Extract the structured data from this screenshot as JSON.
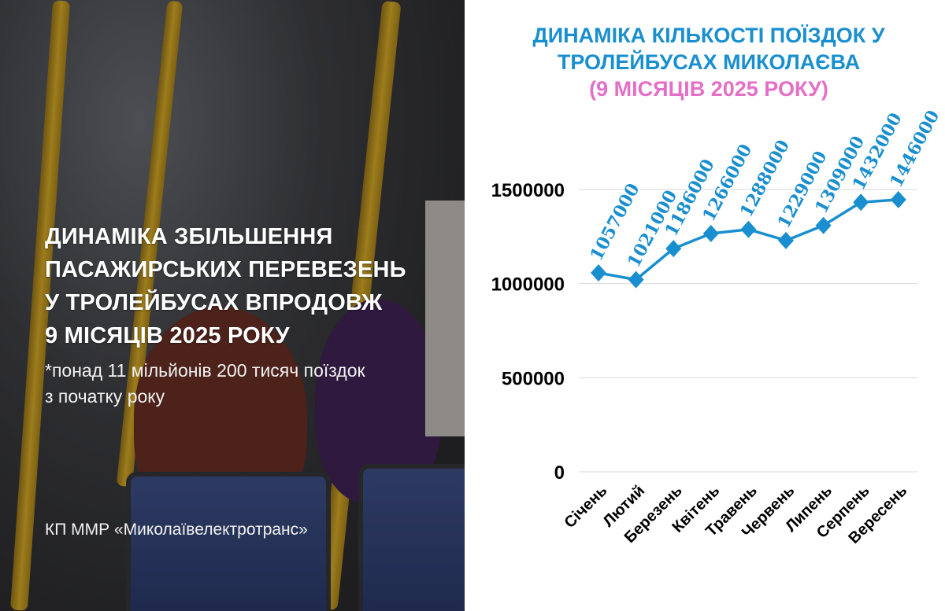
{
  "left_panel": {
    "title_lines": [
      "ДИНАМІКА ЗБІЛЬШЕННЯ",
      "ПАСАЖИРСЬКИХ ПЕРЕВЕЗЕНЬ",
      "У ТРОЛЕЙБУСАХ ВПРОДОВЖ",
      "9 МІСЯЦІВ 2025 РОКУ"
    ],
    "subtitle_lines": [
      "*понад 11 мільйонів 200 тисяч поїздок",
      "з початку року"
    ],
    "organization": "КП ММР «Миколаївелектротранс»"
  },
  "chart_data": {
    "type": "line",
    "title_lines": [
      "ДИНАМІКА КІЛЬКОСТІ ПОЇЗДОК У",
      "ТРОЛЕЙБУСАХ МИКОЛАЄВА"
    ],
    "subtitle": "(9 МІСЯЦІВ 2025 РОКУ)",
    "categories": [
      "Січень",
      "Лютий",
      "Березень",
      "Квітень",
      "Травень",
      "Червень",
      "Липень",
      "Серпень",
      "Вересень"
    ],
    "values": [
      1057000,
      1021000,
      1186000,
      1266000,
      1288000,
      1229000,
      1309000,
      1432000,
      1446000
    ],
    "data_labels": [
      "1057000",
      "1021000",
      "1186000",
      "1266000",
      "1288000",
      "1229000",
      "1309000",
      "1432000",
      "1446000"
    ],
    "yticks": [
      "0",
      "500000",
      "1000000",
      "1500000"
    ],
    "ylim": [
      0,
      1500000
    ],
    "grid": true,
    "marker": "diamond",
    "colors": {
      "line": "#1a8fd0",
      "title": "#1a8fd0",
      "subtitle": "#e46fc6",
      "grid": "#d9d9d9",
      "axis_text": "#000000"
    }
  }
}
